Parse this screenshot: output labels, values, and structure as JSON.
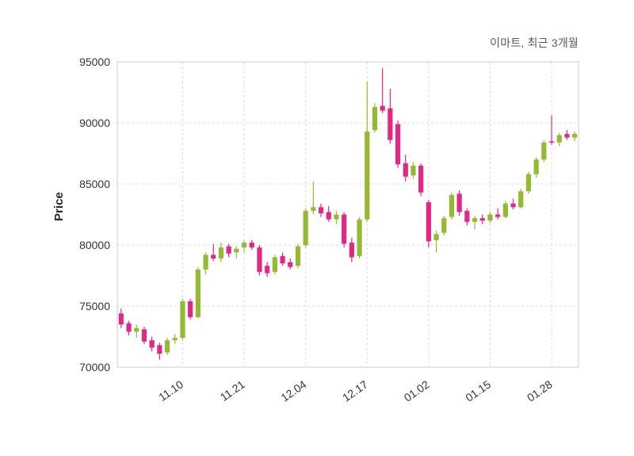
{
  "chart_data": {
    "type": "candlestick",
    "title": "이마트, 최근 3개월",
    "ylabel": "Price",
    "ylim": [
      70000,
      95000
    ],
    "yticks": [
      70000,
      75000,
      80000,
      85000,
      90000,
      95000
    ],
    "xtick_labels": [
      "11.10",
      "11.21",
      "12.04",
      "12.17",
      "01.02",
      "01.15",
      "01.28"
    ],
    "xtick_indices": [
      8,
      16,
      24,
      32,
      40,
      48,
      56
    ],
    "grid": "dashed",
    "legend": "none",
    "colors": {
      "bull": "#94ba32",
      "bear": "#e12885",
      "grid": "#d9d9d9",
      "axis_text": "#333333",
      "title_text": "#595959",
      "border": "#cccccc",
      "background": "#ffffff"
    },
    "candles_format": [
      "open",
      "high",
      "low",
      "close"
    ],
    "candles": [
      [
        74400,
        74800,
        73200,
        73500
      ],
      [
        73600,
        73800,
        72600,
        72900
      ],
      [
        72900,
        73500,
        72400,
        73200
      ],
      [
        73100,
        73300,
        71900,
        72100
      ],
      [
        72200,
        72500,
        71300,
        71600
      ],
      [
        71800,
        72000,
        70600,
        71100
      ],
      [
        71200,
        72400,
        71000,
        72200
      ],
      [
        72200,
        72700,
        71900,
        72400
      ],
      [
        72400,
        75600,
        72200,
        75400
      ],
      [
        75400,
        75600,
        73900,
        74100
      ],
      [
        74100,
        78200,
        74000,
        78000
      ],
      [
        78000,
        79400,
        77600,
        79200
      ],
      [
        79200,
        80100,
        78700,
        78900
      ],
      [
        78900,
        80200,
        78600,
        79800
      ],
      [
        79900,
        80100,
        79000,
        79300
      ],
      [
        79400,
        79900,
        78900,
        79700
      ],
      [
        79800,
        80400,
        79400,
        80200
      ],
      [
        80200,
        80400,
        79600,
        79800
      ],
      [
        79800,
        80000,
        77500,
        77800
      ],
      [
        78300,
        78600,
        77400,
        77700
      ],
      [
        77800,
        79200,
        77600,
        79000
      ],
      [
        79100,
        79400,
        78300,
        78500
      ],
      [
        78600,
        78900,
        78000,
        78200
      ],
      [
        78300,
        80100,
        78100,
        79900
      ],
      [
        80000,
        83000,
        79800,
        82800
      ],
      [
        82800,
        85200,
        82500,
        83100
      ],
      [
        83100,
        83400,
        82300,
        82600
      ],
      [
        82700,
        83200,
        81900,
        82100
      ],
      [
        82100,
        82800,
        81700,
        82500
      ],
      [
        82500,
        82700,
        79800,
        80100
      ],
      [
        80200,
        80600,
        78600,
        79000
      ],
      [
        79100,
        82300,
        78900,
        82100
      ],
      [
        82100,
        93400,
        81900,
        89300
      ],
      [
        89400,
        91600,
        89200,
        91300
      ],
      [
        91400,
        94500,
        90800,
        91000
      ],
      [
        91200,
        92800,
        88300,
        88600
      ],
      [
        89900,
        90200,
        86300,
        86600
      ],
      [
        86700,
        87400,
        85200,
        85600
      ],
      [
        85700,
        86800,
        85400,
        86500
      ],
      [
        86500,
        86700,
        84000,
        84300
      ],
      [
        83500,
        83700,
        79800,
        80300
      ],
      [
        80400,
        81200,
        79400,
        80900
      ],
      [
        81000,
        82400,
        80800,
        82200
      ],
      [
        82300,
        84300,
        82100,
        84100
      ],
      [
        84200,
        84500,
        82400,
        82700
      ],
      [
        82800,
        83000,
        81600,
        81900
      ],
      [
        81900,
        82400,
        81300,
        82200
      ],
      [
        82200,
        82500,
        81700,
        82000
      ],
      [
        82000,
        82700,
        81800,
        82500
      ],
      [
        82500,
        83000,
        82100,
        82300
      ],
      [
        82300,
        83600,
        82200,
        83400
      ],
      [
        83400,
        83800,
        82900,
        83100
      ],
      [
        83100,
        84600,
        83000,
        84400
      ],
      [
        84400,
        86000,
        84200,
        85800
      ],
      [
        85800,
        87200,
        85500,
        87000
      ],
      [
        87000,
        88600,
        86800,
        88400
      ],
      [
        88500,
        90600,
        88200,
        88400
      ],
      [
        88400,
        89200,
        88100,
        89000
      ],
      [
        89100,
        89400,
        88600,
        88800
      ],
      [
        88800,
        89300,
        88500,
        89100
      ]
    ]
  }
}
